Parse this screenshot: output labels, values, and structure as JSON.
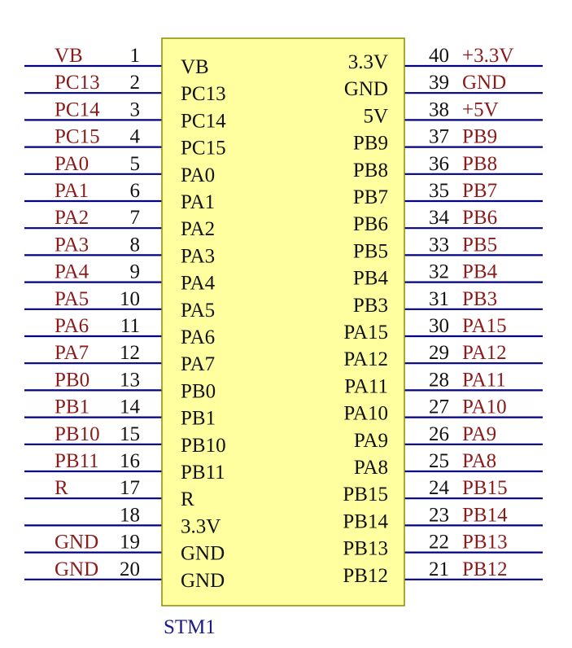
{
  "component": {
    "designator": "STM1",
    "body_fill": "#ffffa0",
    "body_stroke": "#8b8b00",
    "wire_color": "#000080",
    "net_label_color": "#8b1a1a",
    "designator_color": "#1a1a8b"
  },
  "left_pins": [
    {
      "num": "1",
      "label": "VB",
      "net": "VB"
    },
    {
      "num": "2",
      "label": "PC13",
      "net": "PC13"
    },
    {
      "num": "3",
      "label": "PC14",
      "net": "PC14"
    },
    {
      "num": "4",
      "label": "PC15",
      "net": "PC15"
    },
    {
      "num": "5",
      "label": "PA0",
      "net": "PA0"
    },
    {
      "num": "6",
      "label": "PA1",
      "net": "PA1"
    },
    {
      "num": "7",
      "label": "PA2",
      "net": "PA2"
    },
    {
      "num": "8",
      "label": "PA3",
      "net": "PA3"
    },
    {
      "num": "9",
      "label": "PA4",
      "net": "PA4"
    },
    {
      "num": "10",
      "label": "PA5",
      "net": "PA5"
    },
    {
      "num": "11",
      "label": "PA6",
      "net": "PA6"
    },
    {
      "num": "12",
      "label": "PA7",
      "net": "PA7"
    },
    {
      "num": "13",
      "label": "PB0",
      "net": "PB0"
    },
    {
      "num": "14",
      "label": "PB1",
      "net": "PB1"
    },
    {
      "num": "15",
      "label": "PB10",
      "net": "PB10"
    },
    {
      "num": "16",
      "label": "PB11",
      "net": "PB11"
    },
    {
      "num": "17",
      "label": "R",
      "net": "R"
    },
    {
      "num": "18",
      "label": "3.3V",
      "net": ""
    },
    {
      "num": "19",
      "label": "GND",
      "net": "GND"
    },
    {
      "num": "20",
      "label": "GND",
      "net": "GND"
    }
  ],
  "right_pins": [
    {
      "num": "40",
      "label": "3.3V",
      "net": "+3.3V"
    },
    {
      "num": "39",
      "label": "GND",
      "net": "GND"
    },
    {
      "num": "38",
      "label": "5V",
      "net": "+5V"
    },
    {
      "num": "37",
      "label": "PB9",
      "net": "PB9"
    },
    {
      "num": "36",
      "label": "PB8",
      "net": "PB8"
    },
    {
      "num": "35",
      "label": "PB7",
      "net": "PB7"
    },
    {
      "num": "34",
      "label": "PB6",
      "net": "PB6"
    },
    {
      "num": "33",
      "label": "PB5",
      "net": "PB5"
    },
    {
      "num": "32",
      "label": "PB4",
      "net": "PB4"
    },
    {
      "num": "31",
      "label": "PB3",
      "net": "PB3"
    },
    {
      "num": "30",
      "label": "PA15",
      "net": "PA15"
    },
    {
      "num": "29",
      "label": "PA12",
      "net": "PA12"
    },
    {
      "num": "28",
      "label": "PA11",
      "net": "PA11"
    },
    {
      "num": "27",
      "label": "PA10",
      "net": "PA10"
    },
    {
      "num": "26",
      "label": "PA9",
      "net": "PA9"
    },
    {
      "num": "25",
      "label": "PA8",
      "net": "PA8"
    },
    {
      "num": "24",
      "label": "PB15",
      "net": "PB15"
    },
    {
      "num": "23",
      "label": "PB14",
      "net": "PB14"
    },
    {
      "num": "22",
      "label": "PB13",
      "net": "PB13"
    },
    {
      "num": "21",
      "label": "PB12",
      "net": "PB12"
    }
  ]
}
